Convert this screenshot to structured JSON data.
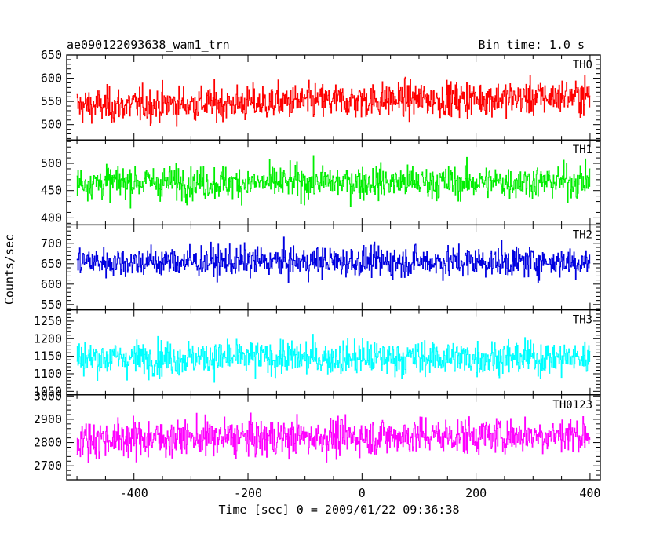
{
  "header": {
    "left": "ae090122093638_wam1_trn",
    "right": "Bin time: 1.0 s"
  },
  "chart_data": {
    "type": "line",
    "title": "ae090122093638_wam1_trn",
    "subtitle": "Bin time: 1.0 s",
    "xlabel": "Time [sec] 0 = 2009/01/22 09:36:38",
    "ylabel": "Counts/sec",
    "xlim": [
      -518,
      418
    ],
    "x_ticks": [
      -400,
      -200,
      0,
      200,
      400
    ],
    "x_tick_labels": [
      "-400",
      "-200",
      "0",
      "200",
      "400"
    ],
    "data_x_range": [
      -500,
      400
    ],
    "grid": false,
    "panels": [
      {
        "name": "TH0",
        "color": "#ff0000",
        "ylim": [
          467,
          650
        ],
        "y_ticks": [
          500,
          550,
          600,
          650
        ],
        "y_tick_labels": [
          "500",
          "550",
          "600",
          "650"
        ],
        "mean": [
          540,
          542,
          545,
          546,
          550,
          552,
          555,
          556,
          558,
          562
        ],
        "sigma": 26,
        "range": [
          470,
          650
        ]
      },
      {
        "name": "TH1",
        "color": "#00ee00",
        "ylim": [
          387,
          543
        ],
        "y_ticks": [
          400,
          450,
          500
        ],
        "y_tick_labels": [
          "400",
          "450",
          "500"
        ],
        "mean": [
          465,
          466,
          465,
          464,
          465,
          466,
          465,
          465,
          466,
          468
        ],
        "sigma": 21,
        "range": [
          390,
          540
        ]
      },
      {
        "name": "TH2",
        "color": "#0000e0",
        "ylim": [
          537,
          745
        ],
        "y_ticks": [
          550,
          600,
          650,
          700
        ],
        "y_tick_labels": [
          "550",
          "600",
          "650",
          "700"
        ],
        "mean": [
          655,
          655,
          655,
          655,
          655,
          655,
          655,
          655,
          655,
          655
        ],
        "sigma": 26,
        "range": [
          545,
          740
        ]
      },
      {
        "name": "TH3",
        "color": "#00ffff",
        "ylim": [
          1040,
          1282
        ],
        "y_ticks": [
          1050,
          1100,
          1150,
          1200,
          1250
        ],
        "y_tick_labels": [
          "1050",
          "1100",
          "1150",
          "1200",
          "1250"
        ],
        "mean": [
          1145,
          1145,
          1145,
          1145,
          1145,
          1145,
          1145,
          1145,
          1145,
          1145
        ],
        "sigma": 34,
        "range": [
          1050,
          1280
        ]
      },
      {
        "name": "TH0123",
        "color": "#ff00ff",
        "ylim": [
          2640,
          3005
        ],
        "y_ticks": [
          2700,
          2800,
          2900,
          3000
        ],
        "y_tick_labels": [
          "2700",
          "2800",
          "2900",
          "3000"
        ],
        "mean": [
          2815,
          2818,
          2820,
          2820,
          2822,
          2825,
          2828,
          2830,
          2832,
          2835
        ],
        "sigma": 55,
        "range": [
          2660,
          3000
        ]
      }
    ]
  }
}
